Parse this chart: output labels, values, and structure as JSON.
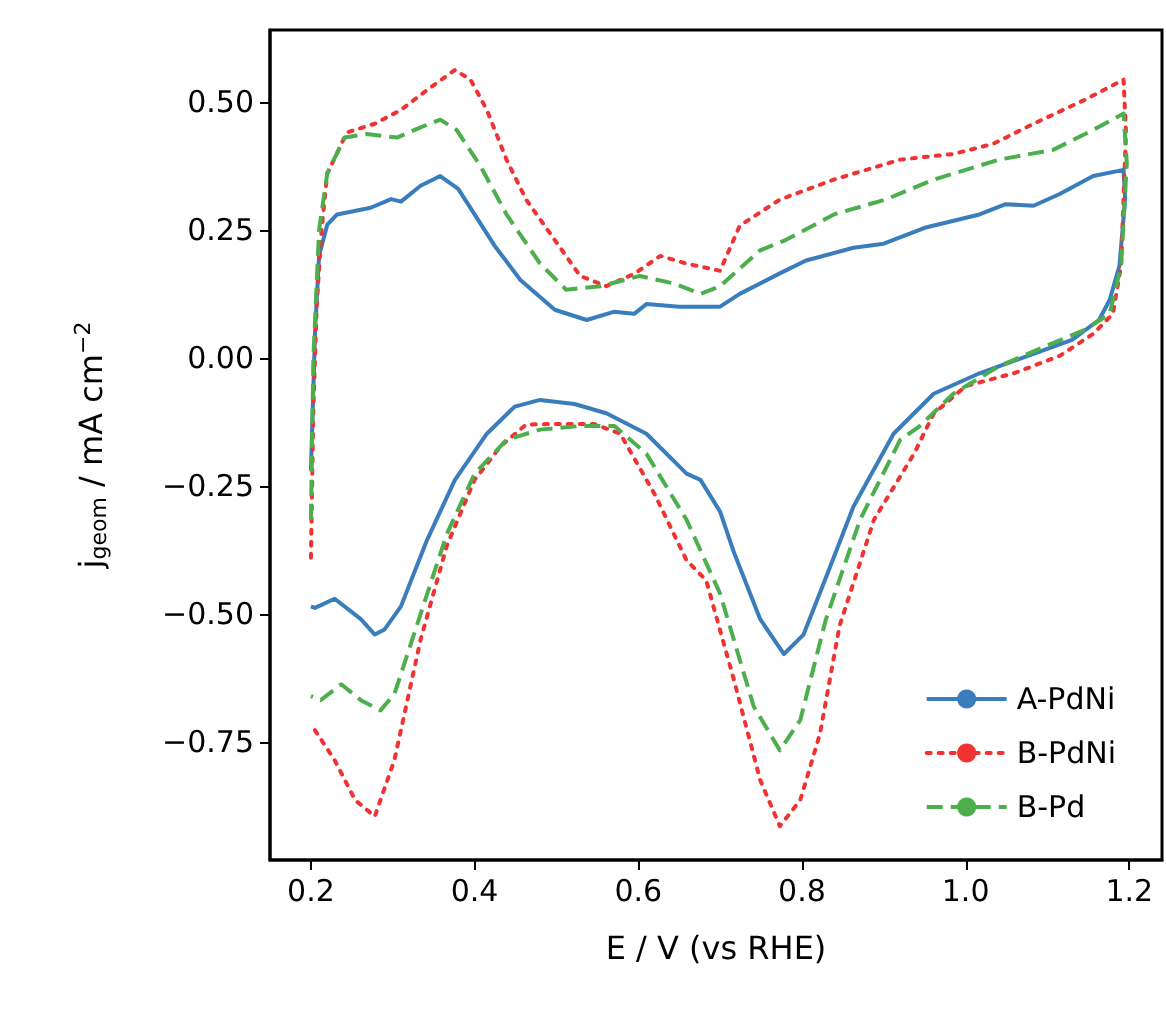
{
  "chart_data": {
    "type": "line",
    "xlabel": "E / V (vs RHE)",
    "ylabel": "j$_{geom}$ / mA cm$^{−2}$",
    "xlim": [
      0.15,
      1.24
    ],
    "ylim": [
      -0.98,
      0.64
    ],
    "xticks": [
      {
        "value": 0.2,
        "label": "0.2"
      },
      {
        "value": 0.4,
        "label": "0.4"
      },
      {
        "value": 0.6,
        "label": "0.6"
      },
      {
        "value": 0.8,
        "label": "0.8"
      },
      {
        "value": 1.0,
        "label": "1.0"
      },
      {
        "value": 1.2,
        "label": "1.2"
      }
    ],
    "yticks": [
      {
        "value": -0.75,
        "label": "−0.75"
      },
      {
        "value": -0.5,
        "label": "−0.50"
      },
      {
        "value": -0.25,
        "label": "−0.25"
      },
      {
        "value": 0,
        "label": "0.00"
      },
      {
        "value": 0.25,
        "label": "0.25"
      },
      {
        "value": 0.5,
        "label": "0.50"
      }
    ],
    "grid": false,
    "legend": "bottom right",
    "marker": "none",
    "series": [
      {
        "name": "A-PdNi",
        "color": "#3a7dbd",
        "line_style": "solid",
        "x": [
          0.2,
          0.205,
          0.21,
          0.22,
          0.232,
          0.273,
          0.298,
          0.31,
          0.334,
          0.358,
          0.38,
          0.4,
          0.424,
          0.456,
          0.498,
          0.537,
          0.57,
          0.595,
          0.61,
          0.65,
          0.676,
          0.7,
          0.724,
          0.773,
          0.805,
          0.863,
          0.9,
          0.95,
          1.017,
          1.049,
          1.083,
          1.115,
          1.156,
          1.193,
          1.195,
          1.188,
          1.176,
          1.163,
          1.13,
          1.083,
          1.017,
          0.961,
          0.912,
          0.863,
          0.829,
          0.802,
          0.778,
          0.749,
          0.717,
          0.7,
          0.676,
          0.659,
          0.61,
          0.561,
          0.522,
          0.48,
          0.449,
          0.415,
          0.376,
          0.342,
          0.31,
          0.29,
          0.278,
          0.261,
          0.229,
          0.205,
          0.2
        ],
        "values": [
          -0.22,
          0.05,
          0.2,
          0.26,
          0.28,
          0.293,
          0.31,
          0.305,
          0.336,
          0.355,
          0.33,
          0.28,
          0.22,
          0.152,
          0.094,
          0.074,
          0.09,
          0.086,
          0.105,
          0.1,
          0.1,
          0.1,
          0.125,
          0.165,
          0.19,
          0.215,
          0.223,
          0.254,
          0.28,
          0.3,
          0.297,
          0.32,
          0.355,
          0.367,
          0.31,
          0.18,
          0.113,
          0.074,
          0.035,
          0.008,
          -0.03,
          -0.07,
          -0.148,
          -0.29,
          -0.43,
          -0.54,
          -0.578,
          -0.51,
          -0.38,
          -0.3,
          -0.238,
          -0.226,
          -0.148,
          -0.108,
          -0.09,
          -0.082,
          -0.095,
          -0.148,
          -0.238,
          -0.355,
          -0.485,
          -0.53,
          -0.54,
          -0.51,
          -0.47,
          -0.488,
          -0.485
        ]
      },
      {
        "name": "B-PdNi",
        "color": "#f03232",
        "line_style": "dotted",
        "x": [
          0.2,
          0.203,
          0.207,
          0.213,
          0.22,
          0.244,
          0.278,
          0.31,
          0.342,
          0.376,
          0.395,
          0.415,
          0.439,
          0.463,
          0.498,
          0.529,
          0.561,
          0.595,
          0.627,
          0.659,
          0.7,
          0.724,
          0.773,
          0.839,
          0.92,
          0.985,
          1.034,
          1.083,
          1.146,
          1.193,
          1.196,
          1.19,
          1.18,
          1.156,
          1.115,
          1.059,
          1.0,
          0.961,
          0.937,
          0.888,
          0.846,
          0.822,
          0.798,
          0.773,
          0.749,
          0.717,
          0.683,
          0.659,
          0.62,
          0.578,
          0.546,
          0.498,
          0.463,
          0.432,
          0.4,
          0.366,
          0.334,
          0.302,
          0.278,
          0.254,
          0.229,
          0.205,
          0.2
        ],
        "values": [
          -0.39,
          -0.1,
          0.1,
          0.25,
          0.36,
          0.44,
          0.457,
          0.484,
          0.523,
          0.562,
          0.543,
          0.484,
          0.387,
          0.309,
          0.23,
          0.16,
          0.14,
          0.164,
          0.199,
          0.184,
          0.17,
          0.258,
          0.309,
          0.348,
          0.387,
          0.398,
          0.418,
          0.457,
          0.504,
          0.543,
          0.44,
          0.18,
          0.086,
          0.047,
          0.004,
          -0.03,
          -0.055,
          -0.109,
          -0.187,
          -0.316,
          -0.523,
          -0.734,
          -0.863,
          -0.914,
          -0.824,
          -0.629,
          -0.434,
          -0.395,
          -0.266,
          -0.148,
          -0.129,
          -0.129,
          -0.13,
          -0.172,
          -0.238,
          -0.367,
          -0.55,
          -0.785,
          -0.895,
          -0.863,
          -0.785,
          -0.727,
          -0.72
        ]
      },
      {
        "name": "B-Pd",
        "color": "#4cae4c",
        "line_style": "dashed",
        "x": [
          0.2,
          0.203,
          0.21,
          0.22,
          0.241,
          0.268,
          0.305,
          0.334,
          0.358,
          0.378,
          0.407,
          0.439,
          0.48,
          0.512,
          0.554,
          0.602,
          0.644,
          0.676,
          0.7,
          0.749,
          0.78,
          0.839,
          0.902,
          0.961,
          1.041,
          1.107,
          1.156,
          1.193,
          1.197,
          1.19,
          1.176,
          1.146,
          1.098,
          1.041,
          0.985,
          0.944,
          0.92,
          0.871,
          0.829,
          0.798,
          0.773,
          0.741,
          0.7,
          0.659,
          0.61,
          0.571,
          0.529,
          0.48,
          0.439,
          0.4,
          0.366,
          0.334,
          0.302,
          0.285,
          0.261,
          0.237,
          0.212,
          0.2
        ],
        "values": [
          -0.316,
          0.0,
          0.25,
          0.36,
          0.43,
          0.437,
          0.43,
          0.45,
          0.465,
          0.445,
          0.375,
          0.28,
          0.184,
          0.133,
          0.14,
          0.16,
          0.145,
          0.125,
          0.14,
          0.21,
          0.23,
          0.28,
          0.309,
          0.348,
          0.387,
          0.406,
          0.445,
          0.477,
          0.38,
          0.18,
          0.086,
          0.055,
          0.023,
          -0.016,
          -0.07,
          -0.133,
          -0.16,
          -0.316,
          -0.512,
          -0.707,
          -0.766,
          -0.68,
          -0.46,
          -0.316,
          -0.187,
          -0.133,
          -0.133,
          -0.14,
          -0.16,
          -0.226,
          -0.344,
          -0.5,
          -0.656,
          -0.688,
          -0.668,
          -0.637,
          -0.668,
          -0.66
        ]
      }
    ]
  }
}
